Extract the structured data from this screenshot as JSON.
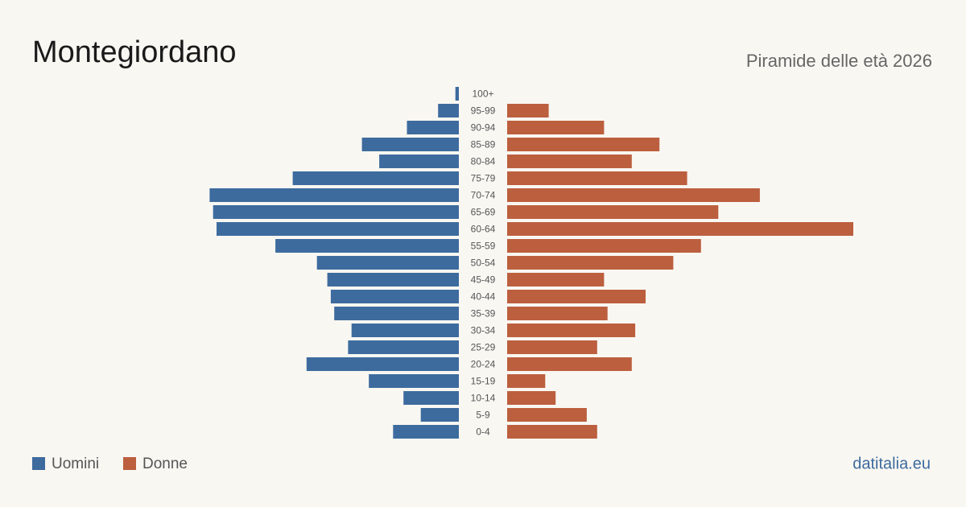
{
  "chart_data": {
    "type": "pyramid",
    "title": "Montegiordano",
    "subtitle": "Piramide delle età 2026",
    "source": "datitalia.eu",
    "categories": [
      "100+",
      "95-99",
      "90-94",
      "85-89",
      "80-84",
      "75-79",
      "70-74",
      "65-69",
      "60-64",
      "55-59",
      "50-54",
      "45-49",
      "40-44",
      "35-39",
      "30-34",
      "25-29",
      "20-24",
      "15-19",
      "10-14",
      "5-9",
      "0-4"
    ],
    "series": [
      {
        "name": "Uomini",
        "color": "#3d6b9e",
        "values": [
          1,
          6,
          15,
          28,
          23,
          48,
          72,
          71,
          70,
          53,
          41,
          38,
          37,
          36,
          31,
          32,
          44,
          26,
          16,
          11,
          19
        ]
      },
      {
        "name": "Donne",
        "color": "#bc5f3e",
        "values": [
          0,
          12,
          28,
          44,
          36,
          52,
          73,
          61,
          100,
          56,
          48,
          28,
          40,
          29,
          37,
          26,
          36,
          11,
          14,
          23,
          26
        ]
      }
    ]
  }
}
